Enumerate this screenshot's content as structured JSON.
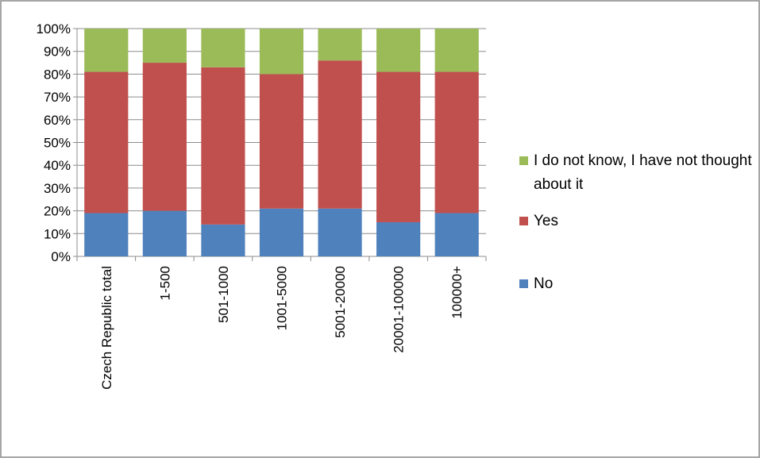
{
  "chart_data": {
    "type": "stacked-bar-100",
    "categories": [
      "Czech Republic total",
      "1-500",
      "501-1000",
      "1001-5000",
      "5001-20000",
      "20001-100000",
      "100000+"
    ],
    "series": [
      {
        "name": "No",
        "color": "#4f81bd",
        "values": [
          19,
          20,
          14,
          21,
          21,
          15,
          19
        ]
      },
      {
        "name": "Yes",
        "color": "#c0504d",
        "values": [
          62,
          65,
          69,
          59,
          65,
          66,
          62
        ]
      },
      {
        "name": "I do not know, I have not thought about it",
        "color": "#9bbb59",
        "values": [
          19,
          15,
          17,
          20,
          14,
          19,
          19
        ]
      }
    ],
    "ylim": [
      0,
      100
    ],
    "yticks": [
      {
        "value": 0,
        "label": "0%"
      },
      {
        "value": 10,
        "label": "10%"
      },
      {
        "value": 20,
        "label": "20%"
      },
      {
        "value": 30,
        "label": "30%"
      },
      {
        "value": 40,
        "label": "40%"
      },
      {
        "value": 50,
        "label": "50%"
      },
      {
        "value": 60,
        "label": "60%"
      },
      {
        "value": 70,
        "label": "70%"
      },
      {
        "value": 80,
        "label": "80%"
      },
      {
        "value": 90,
        "label": "90%"
      },
      {
        "value": 100,
        "label": "100%"
      }
    ],
    "grid": true,
    "legend": "right"
  }
}
